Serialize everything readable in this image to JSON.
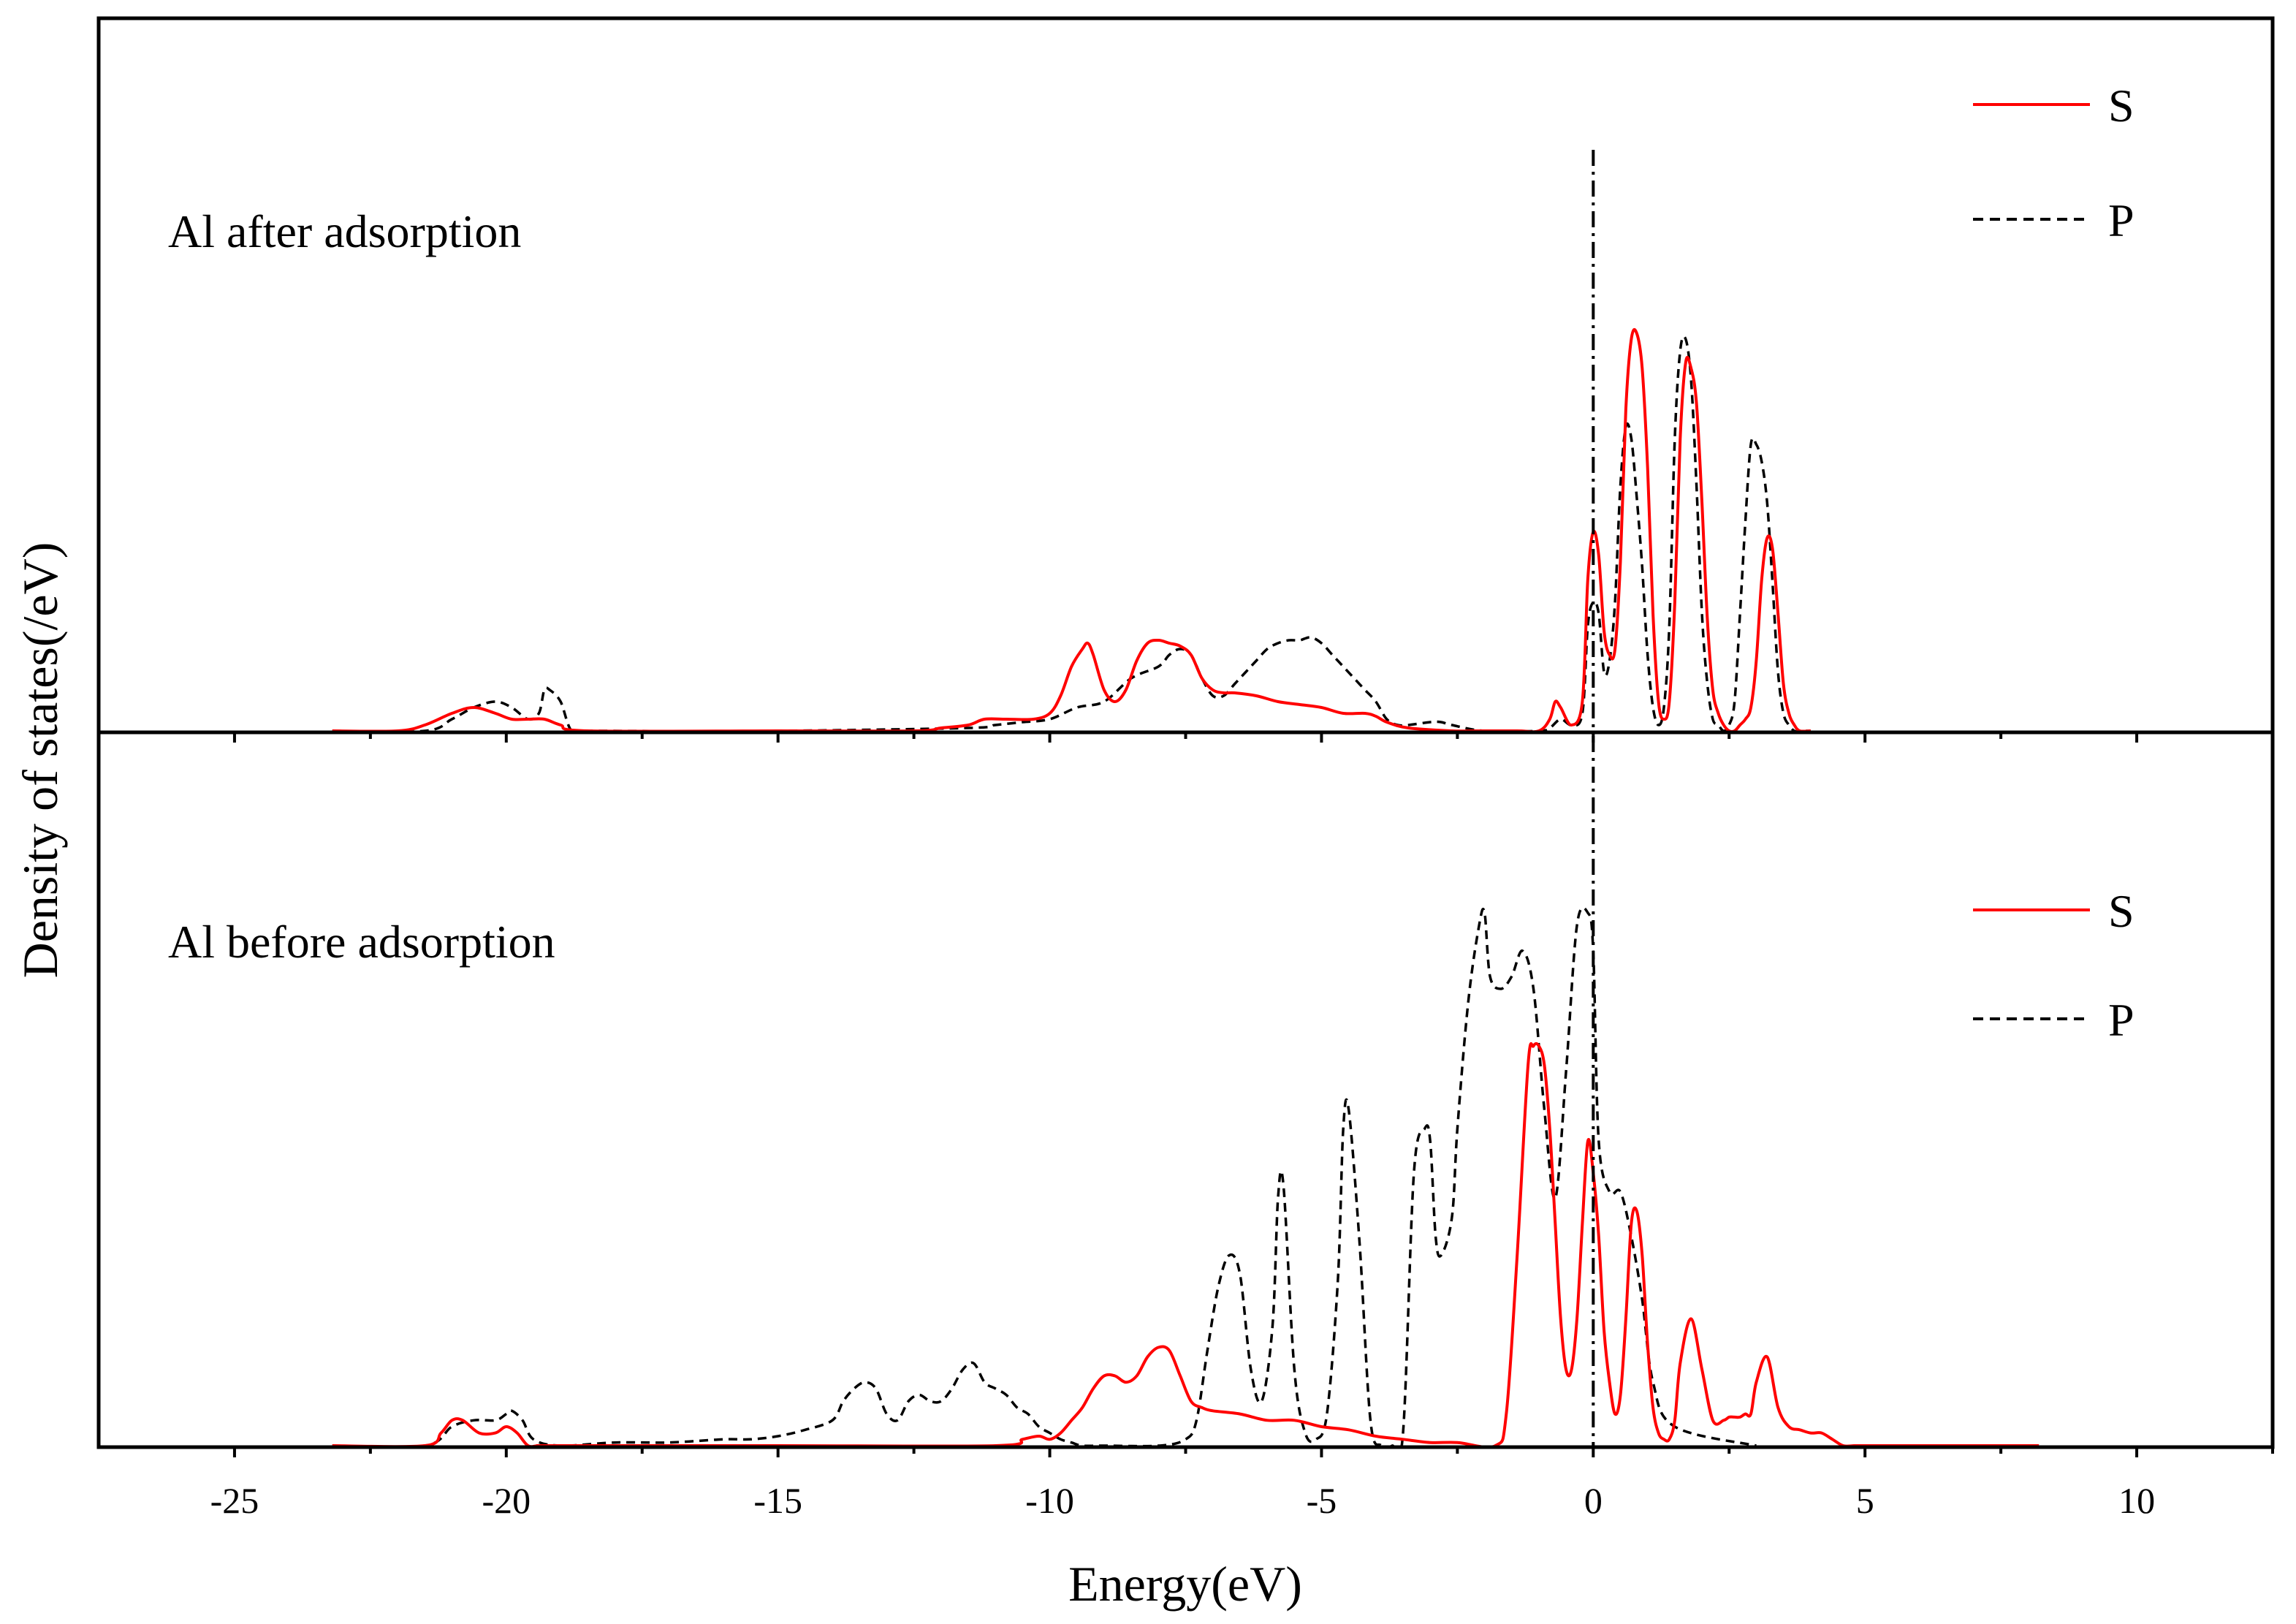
{
  "chart_data": {
    "type": "line",
    "xlabel": "Energy(eV)",
    "ylabel": "Density of states(/eV)",
    "xlim": [
      -27.5,
      12.5
    ],
    "xticks": [
      -25,
      -20,
      -15,
      -10,
      -5,
      0,
      5,
      10
    ],
    "fermi_level": 0,
    "panels": [
      {
        "label": "Al after adsorption",
        "ylim": [
          0,
          1.0
        ],
        "legend": {
          "position": "top-right",
          "entries": [
            "S",
            "P"
          ]
        },
        "series": [
          {
            "name": "S",
            "color": "#ff0000",
            "style": "solid",
            "x": [
              -23.2,
              -22.0,
              -21.5,
              -21.0,
              -20.6,
              -20.2,
              -19.9,
              -19.6,
              -19.3,
              -19.0,
              -18.5,
              -15.0,
              -12.5,
              -12.0,
              -11.5,
              -11.2,
              -10.8,
              -10.3,
              -10.0,
              -9.8,
              -9.6,
              -9.4,
              -9.3,
              -9.2,
              -9.0,
              -8.8,
              -8.6,
              -8.4,
              -8.2,
              -8.0,
              -7.8,
              -7.6,
              -7.4,
              -7.2,
              -7.0,
              -6.8,
              -6.6,
              -6.2,
              -5.8,
              -5.4,
              -5.0,
              -4.6,
              -4.2,
              -4.0,
              -3.8,
              -3.4,
              -2.6,
              -2.2,
              -1.4,
              -1.0,
              -0.8,
              -0.7,
              -0.6,
              -0.4,
              -0.2,
              -0.1,
              0.0,
              0.1,
              0.2,
              0.3,
              0.4,
              0.5,
              0.6,
              0.7,
              0.8,
              0.9,
              1.0,
              1.1,
              1.2,
              1.3,
              1.4,
              1.5,
              1.6,
              1.7,
              1.8,
              1.9,
              2.0,
              2.1,
              2.2,
              2.3,
              2.4,
              2.5,
              2.6,
              2.7,
              2.8,
              2.9,
              3.0,
              3.1,
              3.2,
              3.3,
              3.4,
              3.5,
              3.6,
              3.7,
              3.8,
              4.0
            ],
            "values": [
              0.0,
              0.0,
              0.01,
              0.03,
              0.04,
              0.03,
              0.02,
              0.02,
              0.02,
              0.01,
              0.0,
              0.0,
              0.0,
              0.005,
              0.01,
              0.02,
              0.02,
              0.02,
              0.03,
              0.06,
              0.11,
              0.14,
              0.15,
              0.13,
              0.07,
              0.05,
              0.07,
              0.12,
              0.15,
              0.155,
              0.15,
              0.145,
              0.13,
              0.09,
              0.07,
              0.065,
              0.065,
              0.06,
              0.05,
              0.045,
              0.04,
              0.03,
              0.03,
              0.025,
              0.015,
              0.005,
              0.0,
              0.0,
              0.0,
              0.0,
              0.02,
              0.05,
              0.04,
              0.01,
              0.05,
              0.26,
              0.34,
              0.3,
              0.17,
              0.13,
              0.14,
              0.29,
              0.55,
              0.67,
              0.68,
              0.62,
              0.45,
              0.2,
              0.05,
              0.02,
              0.05,
              0.22,
              0.5,
              0.63,
              0.62,
              0.56,
              0.39,
              0.19,
              0.07,
              0.03,
              0.01,
              0.0,
              0.0,
              0.01,
              0.02,
              0.04,
              0.12,
              0.26,
              0.33,
              0.31,
              0.2,
              0.08,
              0.03,
              0.01,
              0.0,
              0.0
            ]
          },
          {
            "name": "P",
            "color": "#000000",
            "style": "dashed",
            "x": [
              -23.2,
              -21.5,
              -21.0,
              -20.6,
              -20.2,
              -19.9,
              -19.6,
              -19.4,
              -19.3,
              -19.2,
              -19.0,
              -18.8,
              -18.5,
              -15.0,
              -11.5,
              -11.0,
              -10.5,
              -10.0,
              -9.5,
              -9.0,
              -8.5,
              -8.0,
              -7.8,
              -7.6,
              -7.4,
              -7.2,
              -7.0,
              -6.8,
              -6.6,
              -6.4,
              -6.2,
              -6.0,
              -5.8,
              -5.6,
              -5.4,
              -5.2,
              -5.0,
              -4.8,
              -4.6,
              -4.4,
              -4.2,
              -4.0,
              -3.8,
              -3.6,
              -3.4,
              -3.0,
              -2.8,
              -2.6,
              -2.0,
              -1.0,
              -0.8,
              -0.6,
              -0.4,
              -0.2,
              -0.1,
              0.0,
              0.1,
              0.2,
              0.3,
              0.4,
              0.5,
              0.6,
              0.7,
              0.8,
              0.9,
              1.0,
              1.1,
              1.2,
              1.3,
              1.4,
              1.5,
              1.6,
              1.7,
              1.8,
              1.9,
              2.0,
              2.1,
              2.2,
              2.3,
              2.4,
              2.5,
              2.6,
              2.7,
              2.8,
              2.9,
              3.0,
              3.1,
              3.2,
              3.3,
              3.4,
              3.5,
              3.6,
              3.7,
              3.8,
              4.0
            ],
            "values": [
              0.0,
              0.0,
              0.02,
              0.04,
              0.05,
              0.04,
              0.02,
              0.03,
              0.07,
              0.07,
              0.05,
              0.0,
              0.0,
              0.0,
              0.005,
              0.01,
              0.015,
              0.02,
              0.04,
              0.05,
              0.09,
              0.11,
              0.13,
              0.14,
              0.13,
              0.09,
              0.06,
              0.06,
              0.08,
              0.1,
              0.12,
              0.14,
              0.15,
              0.155,
              0.155,
              0.16,
              0.15,
              0.13,
              0.11,
              0.09,
              0.07,
              0.05,
              0.02,
              0.01,
              0.01,
              0.015,
              0.015,
              0.01,
              0.0,
              0.0,
              0.005,
              0.02,
              0.01,
              0.03,
              0.18,
              0.22,
              0.2,
              0.1,
              0.12,
              0.22,
              0.42,
              0.52,
              0.5,
              0.4,
              0.28,
              0.13,
              0.04,
              0.01,
              0.04,
              0.18,
              0.5,
              0.65,
              0.67,
              0.6,
              0.42,
              0.2,
              0.08,
              0.02,
              0.01,
              0.0,
              0.01,
              0.05,
              0.2,
              0.36,
              0.49,
              0.49,
              0.46,
              0.39,
              0.25,
              0.1,
              0.03,
              0.01,
              0.0,
              0.0,
              0.0
            ]
          }
        ]
      },
      {
        "label": "Al before adsorption",
        "ylim": [
          0,
          1.0
        ],
        "legend": {
          "position": "top-right",
          "entries": [
            "S",
            "P"
          ]
        },
        "series": [
          {
            "name": "S",
            "color": "#ff0000",
            "style": "solid",
            "x": [
              -23.2,
              -21.5,
              -21.2,
              -21.0,
              -20.8,
              -20.5,
              -20.2,
              -20.0,
              -19.8,
              -19.6,
              -19.4,
              -19.0,
              -15.0,
              -11.0,
              -10.5,
              -10.2,
              -10.0,
              -9.8,
              -9.6,
              -9.4,
              -9.2,
              -9.0,
              -8.8,
              -8.6,
              -8.4,
              -8.2,
              -8.0,
              -7.8,
              -7.6,
              -7.4,
              -7.2,
              -7.0,
              -6.5,
              -6.0,
              -5.5,
              -5.0,
              -4.5,
              -4.0,
              -3.5,
              -3.0,
              -2.5,
              -1.8,
              -1.6,
              -1.4,
              -1.2,
              -1.1,
              -1.0,
              -0.9,
              -0.8,
              -0.7,
              -0.6,
              -0.5,
              -0.4,
              -0.3,
              -0.2,
              -0.1,
              0.0,
              0.1,
              0.2,
              0.3,
              0.4,
              0.5,
              0.6,
              0.7,
              0.8,
              0.9,
              1.0,
              1.1,
              1.2,
              1.3,
              1.4,
              1.5,
              1.6,
              1.8,
              2.0,
              2.2,
              2.4,
              2.5,
              2.6,
              2.7,
              2.8,
              2.9,
              3.0,
              3.2,
              3.4,
              3.6,
              3.8,
              4.0,
              4.2,
              4.4,
              4.6,
              4.8,
              5.0,
              5.2,
              5.4,
              5.5,
              5.6,
              5.8,
              5.9,
              6.0,
              6.2,
              6.4,
              6.6,
              6.8,
              7.0,
              8.2
            ],
            "values": [
              0.0,
              0.0,
              0.02,
              0.04,
              0.04,
              0.02,
              0.02,
              0.03,
              0.02,
              0.0,
              0.0,
              0.0,
              0.0,
              0.0,
              0.01,
              0.015,
              0.01,
              0.02,
              0.04,
              0.06,
              0.09,
              0.11,
              0.11,
              0.1,
              0.11,
              0.14,
              0.155,
              0.15,
              0.11,
              0.07,
              0.06,
              0.055,
              0.05,
              0.04,
              0.04,
              0.03,
              0.025,
              0.015,
              0.01,
              0.005,
              0.005,
              0.0,
              0.05,
              0.3,
              0.6,
              0.63,
              0.63,
              0.6,
              0.5,
              0.35,
              0.2,
              0.12,
              0.12,
              0.2,
              0.35,
              0.48,
              0.43,
              0.33,
              0.18,
              0.1,
              0.05,
              0.08,
              0.2,
              0.35,
              0.37,
              0.3,
              0.16,
              0.06,
              0.02,
              0.01,
              0.01,
              0.04,
              0.13,
              0.2,
              0.12,
              0.04,
              0.04,
              0.045,
              0.045,
              0.045,
              0.05,
              0.05,
              0.1,
              0.14,
              0.06,
              0.03,
              0.025,
              0.02,
              0.02,
              0.01,
              0.0,
              0.0,
              0.0,
              0.0,
              0.0,
              0.0,
              0.0,
              0.0,
              0.0,
              0.0,
              0.0,
              0.0,
              0.0,
              0.0,
              0.0,
              0.0
            ]
          },
          {
            "name": "P",
            "color": "#000000",
            "style": "dashed",
            "x": [
              -23.2,
              -21.5,
              -21.0,
              -20.6,
              -20.2,
              -20.0,
              -19.9,
              -19.7,
              -19.5,
              -19.0,
              -18.0,
              -17.0,
              -16.0,
              -15.5,
              -15.0,
              -14.5,
              -14.0,
              -13.8,
              -13.6,
              -13.4,
              -13.2,
              -13.0,
              -12.8,
              -12.6,
              -12.4,
              -12.2,
              -12.0,
              -11.8,
              -11.6,
              -11.4,
              -11.2,
              -11.0,
              -10.8,
              -10.6,
              -10.4,
              -10.2,
              -10.0,
              -9.8,
              -9.6,
              -9.4,
              -9.0,
              -8.0,
              -7.5,
              -7.3,
              -7.1,
              -6.9,
              -6.7,
              -6.5,
              -6.3,
              -6.1,
              -5.9,
              -5.8,
              -5.7,
              -5.5,
              -5.3,
              -5.1,
              -4.9,
              -4.7,
              -4.6,
              -4.5,
              -4.3,
              -4.1,
              -3.9,
              -3.7,
              -3.5,
              -3.3,
              -3.1,
              -3.0,
              -2.9,
              -2.8,
              -2.6,
              -2.5,
              -2.3,
              -2.1,
              -2.0,
              -1.9,
              -1.7,
              -1.5,
              -1.3,
              -1.1,
              -0.9,
              -0.7,
              -0.5,
              -0.3,
              -0.1,
              0.0,
              0.1,
              0.3,
              0.5,
              0.7,
              0.9,
              1.1,
              1.5,
              3.0
            ],
            "values": [
              0.0,
              0.0,
              0.03,
              0.04,
              0.04,
              0.05,
              0.055,
              0.04,
              0.01,
              0.0,
              0.005,
              0.005,
              0.01,
              0.01,
              0.015,
              0.025,
              0.04,
              0.07,
              0.09,
              0.1,
              0.09,
              0.05,
              0.04,
              0.07,
              0.08,
              0.07,
              0.07,
              0.09,
              0.12,
              0.13,
              0.1,
              0.09,
              0.08,
              0.06,
              0.05,
              0.03,
              0.02,
              0.01,
              0.005,
              0.0,
              0.0,
              0.0,
              0.01,
              0.04,
              0.15,
              0.25,
              0.3,
              0.27,
              0.12,
              0.07,
              0.19,
              0.39,
              0.41,
              0.12,
              0.02,
              0.01,
              0.05,
              0.26,
              0.5,
              0.53,
              0.32,
              0.04,
              0.0,
              0.0,
              0.02,
              0.43,
              0.5,
              0.48,
              0.33,
              0.3,
              0.36,
              0.5,
              0.7,
              0.82,
              0.84,
              0.74,
              0.72,
              0.74,
              0.78,
              0.72,
              0.53,
              0.39,
              0.59,
              0.82,
              0.84,
              0.78,
              0.48,
              0.4,
              0.4,
              0.33,
              0.23,
              0.1,
              0.03,
              0.0
            ]
          }
        ]
      }
    ]
  }
}
